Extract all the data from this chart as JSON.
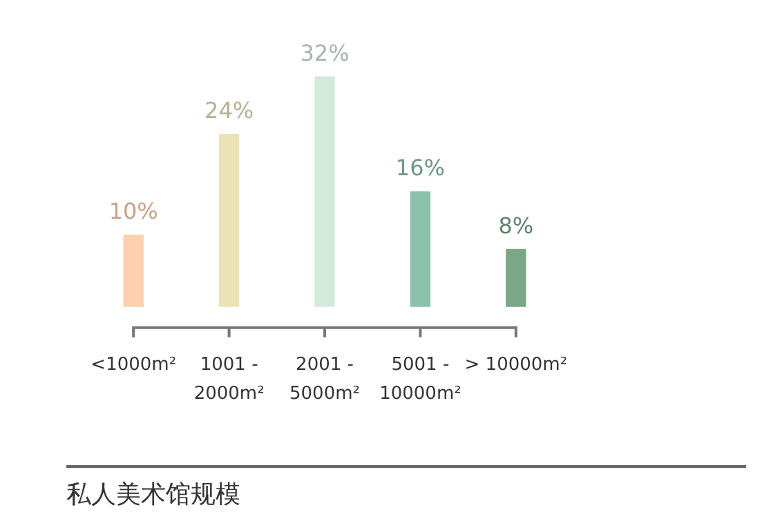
{
  "chart_data": {
    "type": "bar",
    "title": "私人美术馆规模",
    "categories": [
      "<1000m²",
      "1001 - 2000m²",
      "2001 - 5000m²",
      "5001 - 10000m²",
      "> 10000m²"
    ],
    "values": [
      10,
      24,
      32,
      16,
      8
    ],
    "colors": [
      "#fdd0b0",
      "#ede2b6",
      "#d3eadb",
      "#8cc1ab",
      "#7aa785"
    ],
    "value_labels": [
      "10%",
      "24%",
      "32%",
      "16%",
      "8%"
    ],
    "grid": false,
    "legend": false
  }
}
